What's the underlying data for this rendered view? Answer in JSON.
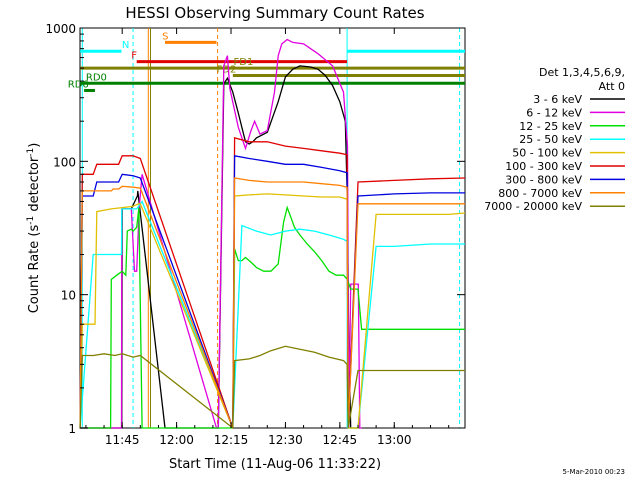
{
  "chart_data": {
    "type": "line",
    "title": "HESSI Observing Summary Count Rates",
    "xlabel": "Start Time (11-Aug-06 11:33:22)",
    "ylabel_main": "Count Rate (s",
    "ylabel_sup1": "-1",
    "ylabel_mid": " detector",
    "ylabel_sup2": "-1",
    "ylabel_end": ")",
    "yscale": "log",
    "ylim": [
      1,
      1000
    ],
    "xlim_minutes": [
      693.37,
      799.5
    ],
    "x_ticks": [
      {
        "label": "11:45",
        "minute": 705
      },
      {
        "label": "12:00",
        "minute": 720
      },
      {
        "label": "12:15",
        "minute": 735
      },
      {
        "label": "12:30",
        "minute": 750
      },
      {
        "label": "12:45",
        "minute": 765
      },
      {
        "label": "13:00",
        "minute": 780
      }
    ],
    "y_ticks": [
      {
        "label": "1",
        "value": 1
      },
      {
        "label": "10",
        "value": 10
      },
      {
        "label": "100",
        "value": 100
      },
      {
        "label": "1000",
        "value": 1000
      }
    ],
    "legend_header_1": "Det 1,3,4,5,6,9,",
    "legend_header_2": "Att 0",
    "footer_date": "5-Mar-2010 00:23",
    "series": [
      {
        "name": "3 - 6 keV",
        "color": "#000000",
        "x": [
          693.4,
          701.8,
          704.9,
          705.0,
          707.5,
          709.2,
          709.3,
          716.8,
          731.0,
          731.5,
          733.0,
          734.0,
          735.5,
          737.0,
          739.0,
          740.0,
          741.0,
          742.0,
          745.0,
          748.0,
          750.0,
          752.0,
          754.0,
          757.0,
          759.0,
          761.0,
          763.0,
          765.0,
          766.5,
          767.0,
          767.4,
          768.0,
          770.0
        ],
        "y": [
          1,
          1,
          1,
          44,
          44,
          55,
          60,
          1,
          1,
          1,
          380,
          420,
          330,
          230,
          140,
          135,
          140,
          150,
          165,
          280,
          430,
          490,
          520,
          510,
          490,
          440,
          370,
          280,
          200,
          60,
          5,
          1,
          1
        ]
      },
      {
        "name": "6 - 12 keV",
        "color": "#e000e0",
        "x": [
          693.4,
          704.8,
          704.9,
          707.5,
          708.4,
          708.5,
          709.0,
          709.7,
          710.5,
          731.0,
          731.5,
          733.0,
          734.0,
          734.7,
          737.0,
          739.0,
          740.5,
          741.5,
          743.0,
          745.0,
          747.0,
          748.0,
          749.0,
          750.5,
          752.0,
          755.0,
          759.0,
          763.0,
          766.0,
          767.1,
          767.5,
          768.0,
          770.0,
          770.1,
          770.5,
          771.0
        ],
        "y": [
          1,
          1,
          44,
          44,
          15,
          15,
          15,
          45,
          80,
          1,
          1,
          520,
          620,
          350,
          180,
          125,
          170,
          200,
          160,
          170,
          330,
          620,
          760,
          820,
          780,
          760,
          640,
          520,
          330,
          130,
          1,
          12,
          12,
          12,
          1,
          1
        ]
      },
      {
        "name": "12 - 25 keV",
        "color": "#00e000",
        "x": [
          693.4,
          695.0,
          696.0,
          697.0,
          698.0,
          701.8,
          702.0,
          703.5,
          705.0,
          706.0,
          706.4,
          707.5,
          708.0,
          709.0,
          709.6,
          710.5,
          735.5,
          736.0,
          737.0,
          738.0,
          739.0,
          740.0,
          741.0,
          742.0,
          744.0,
          746.0,
          748.0,
          749.5,
          750.5,
          751.5,
          752.5,
          754.0,
          756.0,
          758.0,
          760.0,
          762.0,
          764.0,
          766.0,
          767.1,
          767.5,
          768.0,
          770.0,
          771.0,
          790.0,
          797.0,
          799.5
        ],
        "y": [
          1,
          1,
          1,
          1,
          1,
          1,
          13,
          14,
          15,
          14,
          30,
          31,
          30,
          32,
          45,
          1,
          1,
          22,
          18,
          18,
          19,
          18,
          17,
          16,
          15,
          15,
          17,
          35,
          45,
          38,
          32,
          28,
          24,
          21,
          18,
          15,
          14,
          14,
          13,
          12,
          11,
          11,
          5.5,
          5.5,
          5.5,
          5.5
        ]
      },
      {
        "name": "25 - 50 keV",
        "color": "#00ffff",
        "x": [
          693.4,
          697.0,
          701.8,
          704.8,
          704.9,
          708.4,
          709.0,
          710.5,
          735.5,
          738.0,
          742.0,
          746.0,
          750.0,
          754.0,
          758.0,
          762.0,
          766.0,
          767.1,
          767.3,
          770.0,
          775.0,
          780.0,
          790.0,
          799.5
        ],
        "y": [
          1,
          20,
          20,
          20,
          44,
          44,
          44,
          50,
          1,
          33,
          30,
          28,
          30,
          31,
          30,
          28,
          26,
          25,
          1,
          1,
          23,
          23,
          24,
          24
        ]
      },
      {
        "name": "50 - 100 keV",
        "color": "#e0c000",
        "x": [
          693.4,
          694.0,
          696.0,
          697.5,
          698.0,
          702.0,
          705.0,
          708.0,
          709.5,
          710.0,
          735.5,
          736.0,
          740.0,
          745.0,
          750.0,
          755.0,
          760.0,
          765.0,
          767.0,
          767.3,
          770.0,
          775.0,
          785.0,
          790.0,
          795.0,
          799.5
        ],
        "y": [
          1,
          6,
          6,
          6,
          42,
          44,
          45,
          46,
          48,
          48,
          1,
          55,
          56,
          57,
          56,
          55,
          54,
          54,
          52,
          1,
          1,
          40,
          40,
          40,
          40,
          41
        ]
      },
      {
        "name": "100 - 300 keV",
        "color": "#e00000",
        "x": [
          693.4,
          694.0,
          697.0,
          698.0,
          702.0,
          702.5,
          704.0,
          705.0,
          708.0,
          710.0,
          735.5,
          736.0,
          740.0,
          745.0,
          750.0,
          755.0,
          760.0,
          765.0,
          767.0,
          767.3,
          770.0,
          780.0,
          790.0,
          799.5
        ],
        "y": [
          1,
          80,
          80,
          95,
          95,
          95,
          95,
          110,
          110,
          105,
          1,
          150,
          140,
          140,
          130,
          125,
          120,
          115,
          112,
          1,
          70,
          72,
          74,
          75
        ]
      },
      {
        "name": "300 - 800 keV",
        "color": "#0000e0",
        "x": [
          693.4,
          694.0,
          697.0,
          698.0,
          702.0,
          702.5,
          704.0,
          705.0,
          708.0,
          710.0,
          735.5,
          736.0,
          740.0,
          745.0,
          750.0,
          755.0,
          760.0,
          765.0,
          767.0,
          767.3,
          770.0,
          780.0,
          790.0,
          799.5
        ],
        "y": [
          1,
          55,
          55,
          70,
          70,
          70,
          70,
          80,
          78,
          75,
          1,
          110,
          105,
          100,
          95,
          95,
          90,
          85,
          82,
          1,
          55,
          57,
          58,
          58
        ]
      },
      {
        "name": "800 - 7000 keV",
        "color": "#ff8000",
        "x": [
          693.4,
          694.0,
          697.0,
          698.0,
          702.0,
          702.5,
          704.0,
          705.0,
          708.0,
          710.0,
          735.5,
          736.0,
          740.0,
          745.0,
          750.0,
          755.0,
          760.0,
          765.0,
          767.0,
          767.3,
          770.0,
          780.0,
          790.0,
          799.5
        ],
        "y": [
          1,
          60,
          60,
          60,
          60,
          62,
          62,
          65,
          64,
          63,
          1,
          75,
          72,
          70,
          70,
          70,
          68,
          66,
          64,
          1,
          48,
          48,
          48,
          48
        ]
      },
      {
        "name": "7000 - 20000 keV",
        "color": "#808000",
        "x": [
          693.4,
          694.0,
          697.0,
          700.0,
          703.0,
          705.0,
          708.0,
          710.0,
          735.5,
          736.0,
          740.0,
          743.0,
          746.0,
          750.0,
          754.0,
          758.0,
          762.0,
          766.0,
          767.0,
          767.3,
          770.0,
          775.0,
          780.0,
          785.0,
          790.0,
          795.0,
          799.5
        ],
        "y": [
          1,
          3.5,
          3.5,
          3.6,
          3.5,
          3.6,
          3.4,
          3.5,
          1,
          3.2,
          3.3,
          3.5,
          3.8,
          4.1,
          3.9,
          3.7,
          3.4,
          3.2,
          3.0,
          1,
          2.7,
          2.7,
          2.7,
          2.7,
          2.7,
          2.7,
          2.7
        ]
      }
    ],
    "flag_bars": [
      {
        "label": "S",
        "color": "#ff8000",
        "x0": 716.8,
        "x1": 731.0,
        "y": 780,
        "label_x": 716.0
      },
      {
        "label": "N",
        "color": "#00ffff",
        "x0": 693.4,
        "x1": 704.8,
        "y": 670,
        "label_x": 704.9
      },
      {
        "label": "F",
        "color": "#e00000",
        "x0": 709.0,
        "x1": 767.0,
        "y": 560,
        "label_x": 707.5
      },
      {
        "label": "",
        "color": "#00ffff",
        "x0": 767.0,
        "x1": 799.5,
        "y": 670,
        "label_x": 0
      },
      {
        "label": "FD1",
        "color": "#808000",
        "x0": 693.4,
        "x1": 799.5,
        "y": 500,
        "label_x": 735.7
      },
      {
        "label": "FD2",
        "color": "#808000",
        "x0": 735.5,
        "x1": 799.5,
        "y": 440,
        "label_x": 731.0
      },
      {
        "label": "RD0",
        "color": "#008000",
        "x0": 693.4,
        "x1": 799.5,
        "y": 385,
        "label_x": 695.0
      },
      {
        "label": "RD6",
        "color": "#008000",
        "x0": 694.5,
        "x1": 697.5,
        "y": 340,
        "label_x": 690.0
      }
    ],
    "v_lines": [
      {
        "minute": 694.0,
        "color": "#00ffff",
        "style": "solid"
      },
      {
        "minute": 708.0,
        "color": "#00ffff",
        "style": "dashed"
      },
      {
        "minute": 712.2,
        "color": "#ff8000",
        "style": "solid"
      },
      {
        "minute": 712.8,
        "color": "#808000",
        "style": "solid"
      },
      {
        "minute": 731.3,
        "color": "#ff8000",
        "style": "dashed"
      },
      {
        "minute": 767.0,
        "color": "#00ffff",
        "style": "solid"
      },
      {
        "minute": 798.0,
        "color": "#00ffff",
        "style": "dashed"
      }
    ]
  }
}
